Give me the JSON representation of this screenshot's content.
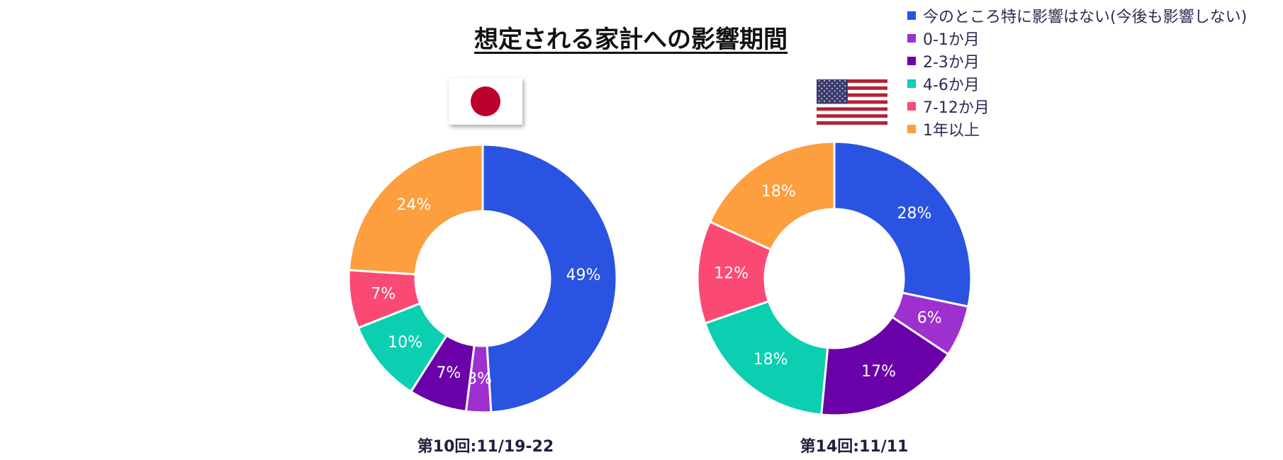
{
  "title": "想定される家計への影響期間",
  "legend": [
    {
      "label": "今のところ特に影響はない(今後も影響しない)",
      "color": "#2953e0"
    },
    {
      "label": "0-1か月",
      "color": "#9d30cf"
    },
    {
      "label": "2-3か月",
      "color": "#6a00a8"
    },
    {
      "label": "4-6か月",
      "color": "#0ccfb1"
    },
    {
      "label": "7-12か月",
      "color": "#fa4a74"
    },
    {
      "label": "1年以上",
      "color": "#fd9e3f"
    }
  ],
  "captions": {
    "jp": "第10回:11/19-22",
    "us": "第14回:11/11"
  },
  "chart_data": [
    {
      "type": "pie",
      "title": "",
      "caption": "第10回:11/19-22",
      "flag": "japan-flag",
      "categories": [
        "今のところ特に影響はない(今後も影響しない)",
        "0-1か月",
        "2-3か月",
        "4-6か月",
        "7-12か月",
        "1年以上"
      ],
      "values": [
        49,
        3,
        7,
        10,
        7,
        24
      ],
      "labels": [
        "49%",
        "3%",
        "7%",
        "10%",
        "7%",
        "24%"
      ],
      "donut": true
    },
    {
      "type": "pie",
      "title": "",
      "caption": "第14回:11/11",
      "flag": "usa-flag",
      "categories": [
        "今のところ特に影響はない(今後も影響しない)",
        "0-1か月",
        "2-3か月",
        "4-6か月",
        "7-12か月",
        "1年以上"
      ],
      "values": [
        28,
        6,
        17,
        18,
        12,
        18
      ],
      "labels": [
        "28%",
        "6%",
        "17%",
        "18%",
        "12%",
        "18%"
      ],
      "donut": true
    }
  ]
}
